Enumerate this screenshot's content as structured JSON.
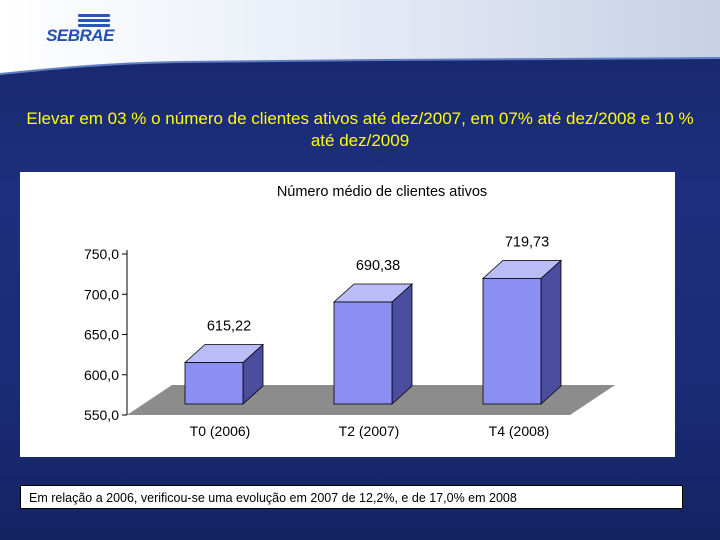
{
  "header": {
    "logo_text": "SEBRAE"
  },
  "headline": "Elevar em 03 % o número de clientes ativos até dez/2007, em 07% até dez/2008 e 10 % até dez/2009",
  "chart_data": {
    "type": "bar",
    "title": "Número médio de clientes ativos",
    "categories": [
      "T0 (2006)",
      "T2 (2007)",
      "T4 (2008)"
    ],
    "values": [
      615.22,
      690.38,
      719.73
    ],
    "value_labels": [
      "615,22",
      "690,38",
      "719,73"
    ],
    "ylim": [
      550,
      750
    ],
    "yticks": [
      550,
      600,
      650,
      700,
      750
    ],
    "ytick_labels": [
      "550,0",
      "600,0",
      "650,0",
      "700,0",
      "750,0"
    ],
    "xlabel": "",
    "ylabel": "",
    "grid": false,
    "bar_color_front": "#8b8ff2",
    "bar_color_side": "#4b4d9e",
    "bar_color_top": "#b9bcf7",
    "floor_color": "#8c8c8c"
  },
  "footnote": "Em relação a 2006, verificou-se uma evolução em 2007 de 12,2%, e de 17,0% em 2008",
  "colors": {
    "headline": "#ffff00",
    "background": "#1d2f7e"
  }
}
